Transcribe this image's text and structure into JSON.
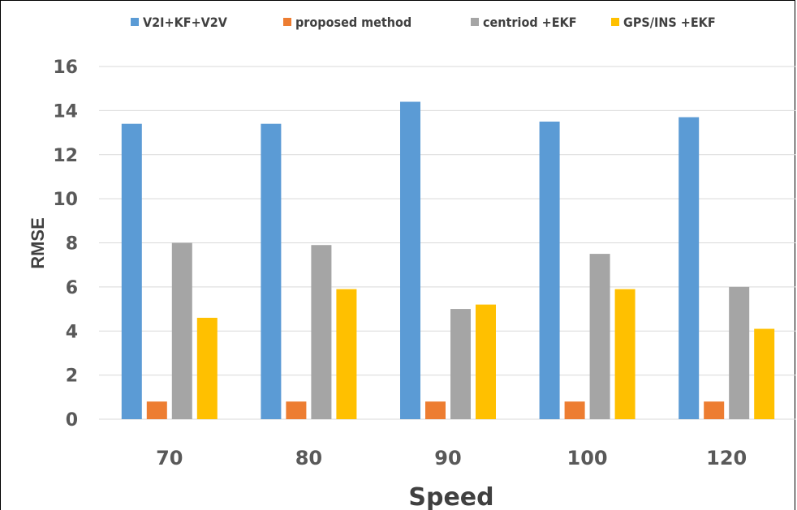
{
  "chart_data": {
    "type": "bar",
    "categories": [
      "70",
      "80",
      "90",
      "100",
      "120"
    ],
    "series": [
      {
        "name": "V2I+KF+V2V",
        "color": "#5B9BD5",
        "values": [
          13.4,
          13.4,
          14.4,
          13.5,
          13.7
        ]
      },
      {
        "name": "proposed method",
        "color": "#ED7D31",
        "values": [
          0.8,
          0.8,
          0.8,
          0.8,
          0.8
        ]
      },
      {
        "name": "centriod +EKF",
        "color": "#A5A5A5",
        "values": [
          8.0,
          7.9,
          5.0,
          7.5,
          6.0
        ]
      },
      {
        "name": "GPS/INS +EKF",
        "color": "#FFC000",
        "values": [
          4.6,
          5.9,
          5.2,
          5.9,
          4.1
        ]
      }
    ],
    "title": "",
    "xlabel": "Speed",
    "ylabel": "RMSE",
    "ylim": [
      0,
      16
    ],
    "yticks": [
      "0",
      "2",
      "4",
      "6",
      "8",
      "10",
      "12",
      "14",
      "16"
    ],
    "grid": true,
    "legend_position": "top",
    "gridline_color": "#D9D9D9"
  }
}
